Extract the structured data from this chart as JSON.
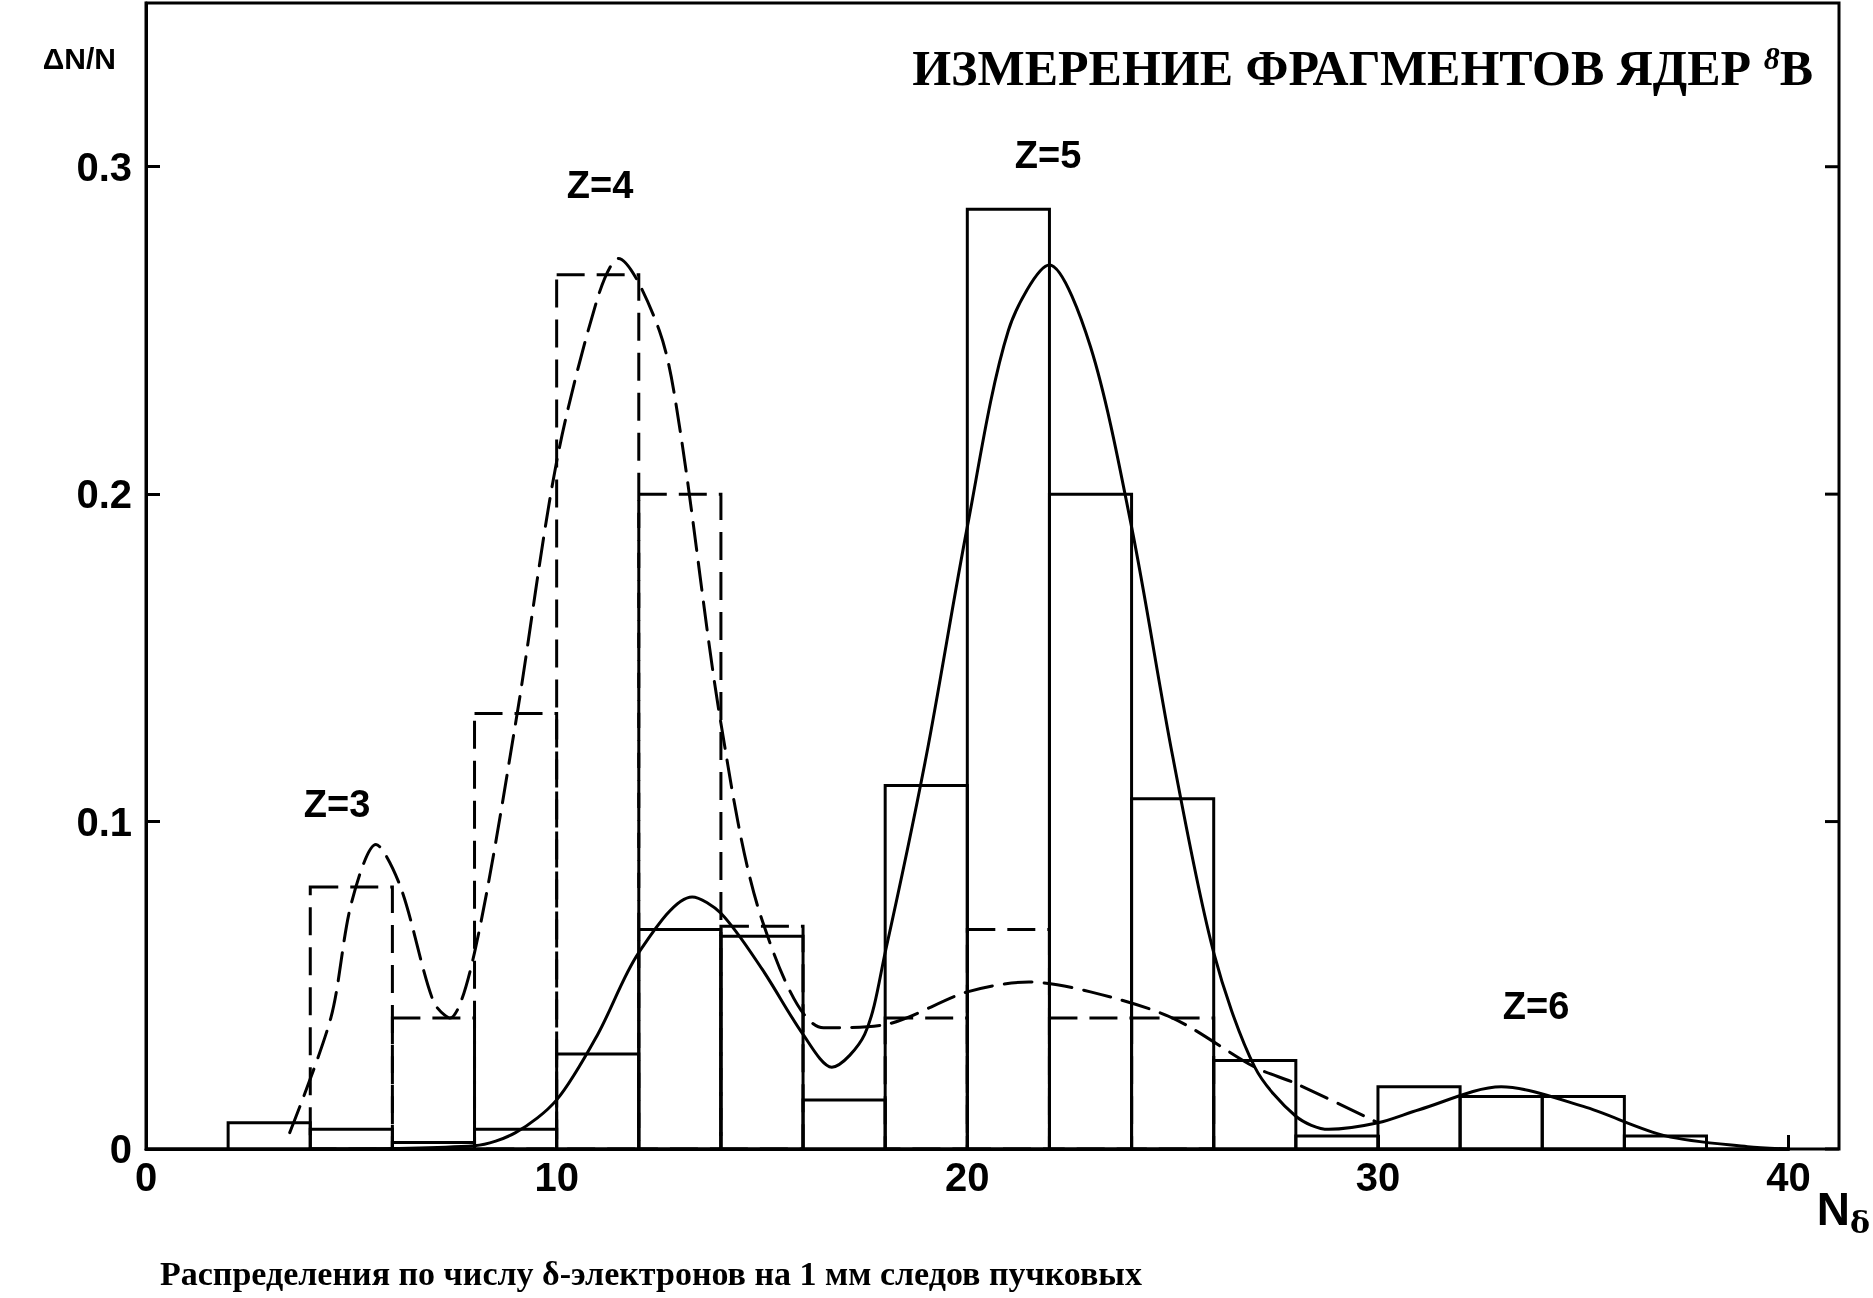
{
  "chart_data": {
    "type": "histogram",
    "title": "ИЗМЕРЕНИЕ ФРАГМЕНТОВ ЯДЕР $^{8}$B",
    "xlabel": "N$_{δ}$",
    "ylabel": "ΔN/N",
    "bins": [
      0,
      2,
      4,
      6,
      8,
      10,
      12,
      14,
      16,
      18,
      20,
      22,
      24,
      26,
      28,
      30,
      32,
      34,
      36,
      38,
      40
    ],
    "xlim": [
      0,
      40
    ],
    "xticks": [
      0,
      10,
      20,
      30,
      40
    ],
    "ylim": [
      0,
      0.35
    ],
    "yticks": [
      0,
      0.1,
      0.2,
      0.3
    ],
    "grid": false,
    "series": [
      {
        "color": "#000000",
        "line_style": "solid",
        "values": [
          0,
          0.008,
          0.006,
          0.002,
          0.006,
          0.029,
          0.067,
          0.065,
          0.015,
          0.111,
          0.287,
          0.2,
          0.107,
          0.027,
          0.004,
          0.019,
          0.016,
          0.016,
          0.004,
          0
        ]
      },
      {
        "color": "#000000",
        "line_style": "dashed",
        "values": [
          null,
          null,
          0.08,
          0.04,
          0.133,
          0.267,
          0.2,
          0.068,
          null,
          0.04,
          0.067,
          0.04,
          0.04,
          null,
          null,
          null,
          null,
          null,
          null,
          null
        ]
      },
      {
        "type": "line",
        "color": "#000000",
        "line_style": "dashed",
        "x": [
          3.5,
          4.5,
          5,
          5.6,
          6.2,
          7,
          7.4,
          8,
          9,
          10,
          11,
          11.5,
          12.5,
          13,
          14,
          15,
          16.5,
          18,
          20,
          21.5,
          23,
          25,
          27,
          28,
          30
        ],
        "values": [
          0.005,
          0.04,
          0.075,
          0.093,
          0.08,
          0.045,
          0.04,
          0.06,
          0.13,
          0.21,
          0.26,
          0.272,
          0.25,
          0.22,
          0.13,
          0.07,
          0.037,
          0.038,
          0.048,
          0.051,
          0.048,
          0.04,
          0.025,
          0.02,
          0.008
        ]
      },
      {
        "type": "line",
        "color": "#000000",
        "line_style": "solid",
        "x": [
          4,
          8,
          9,
          10,
          11,
          12,
          13.3,
          14,
          15,
          16,
          16.7,
          17.5,
          18,
          19,
          20,
          21,
          22,
          23,
          24,
          25,
          26,
          27,
          28,
          28.8,
          30,
          31,
          33,
          35,
          37,
          39,
          40
        ],
        "values": [
          0,
          0.001,
          0.005,
          0.015,
          0.035,
          0.06,
          0.077,
          0.072,
          0.055,
          0.035,
          0.025,
          0.035,
          0.06,
          0.12,
          0.19,
          0.25,
          0.27,
          0.245,
          0.19,
          0.12,
          0.06,
          0.025,
          0.01,
          0.006,
          0.008,
          0.012,
          0.019,
          0.013,
          0.004,
          0.0007,
          0
        ]
      }
    ],
    "annotations": [
      "Z=3",
      "Z=4",
      "Z=5",
      "Z=6",
      "Распределения по числу δ-электронов на 1 мм следов пучковых"
    ]
  }
}
